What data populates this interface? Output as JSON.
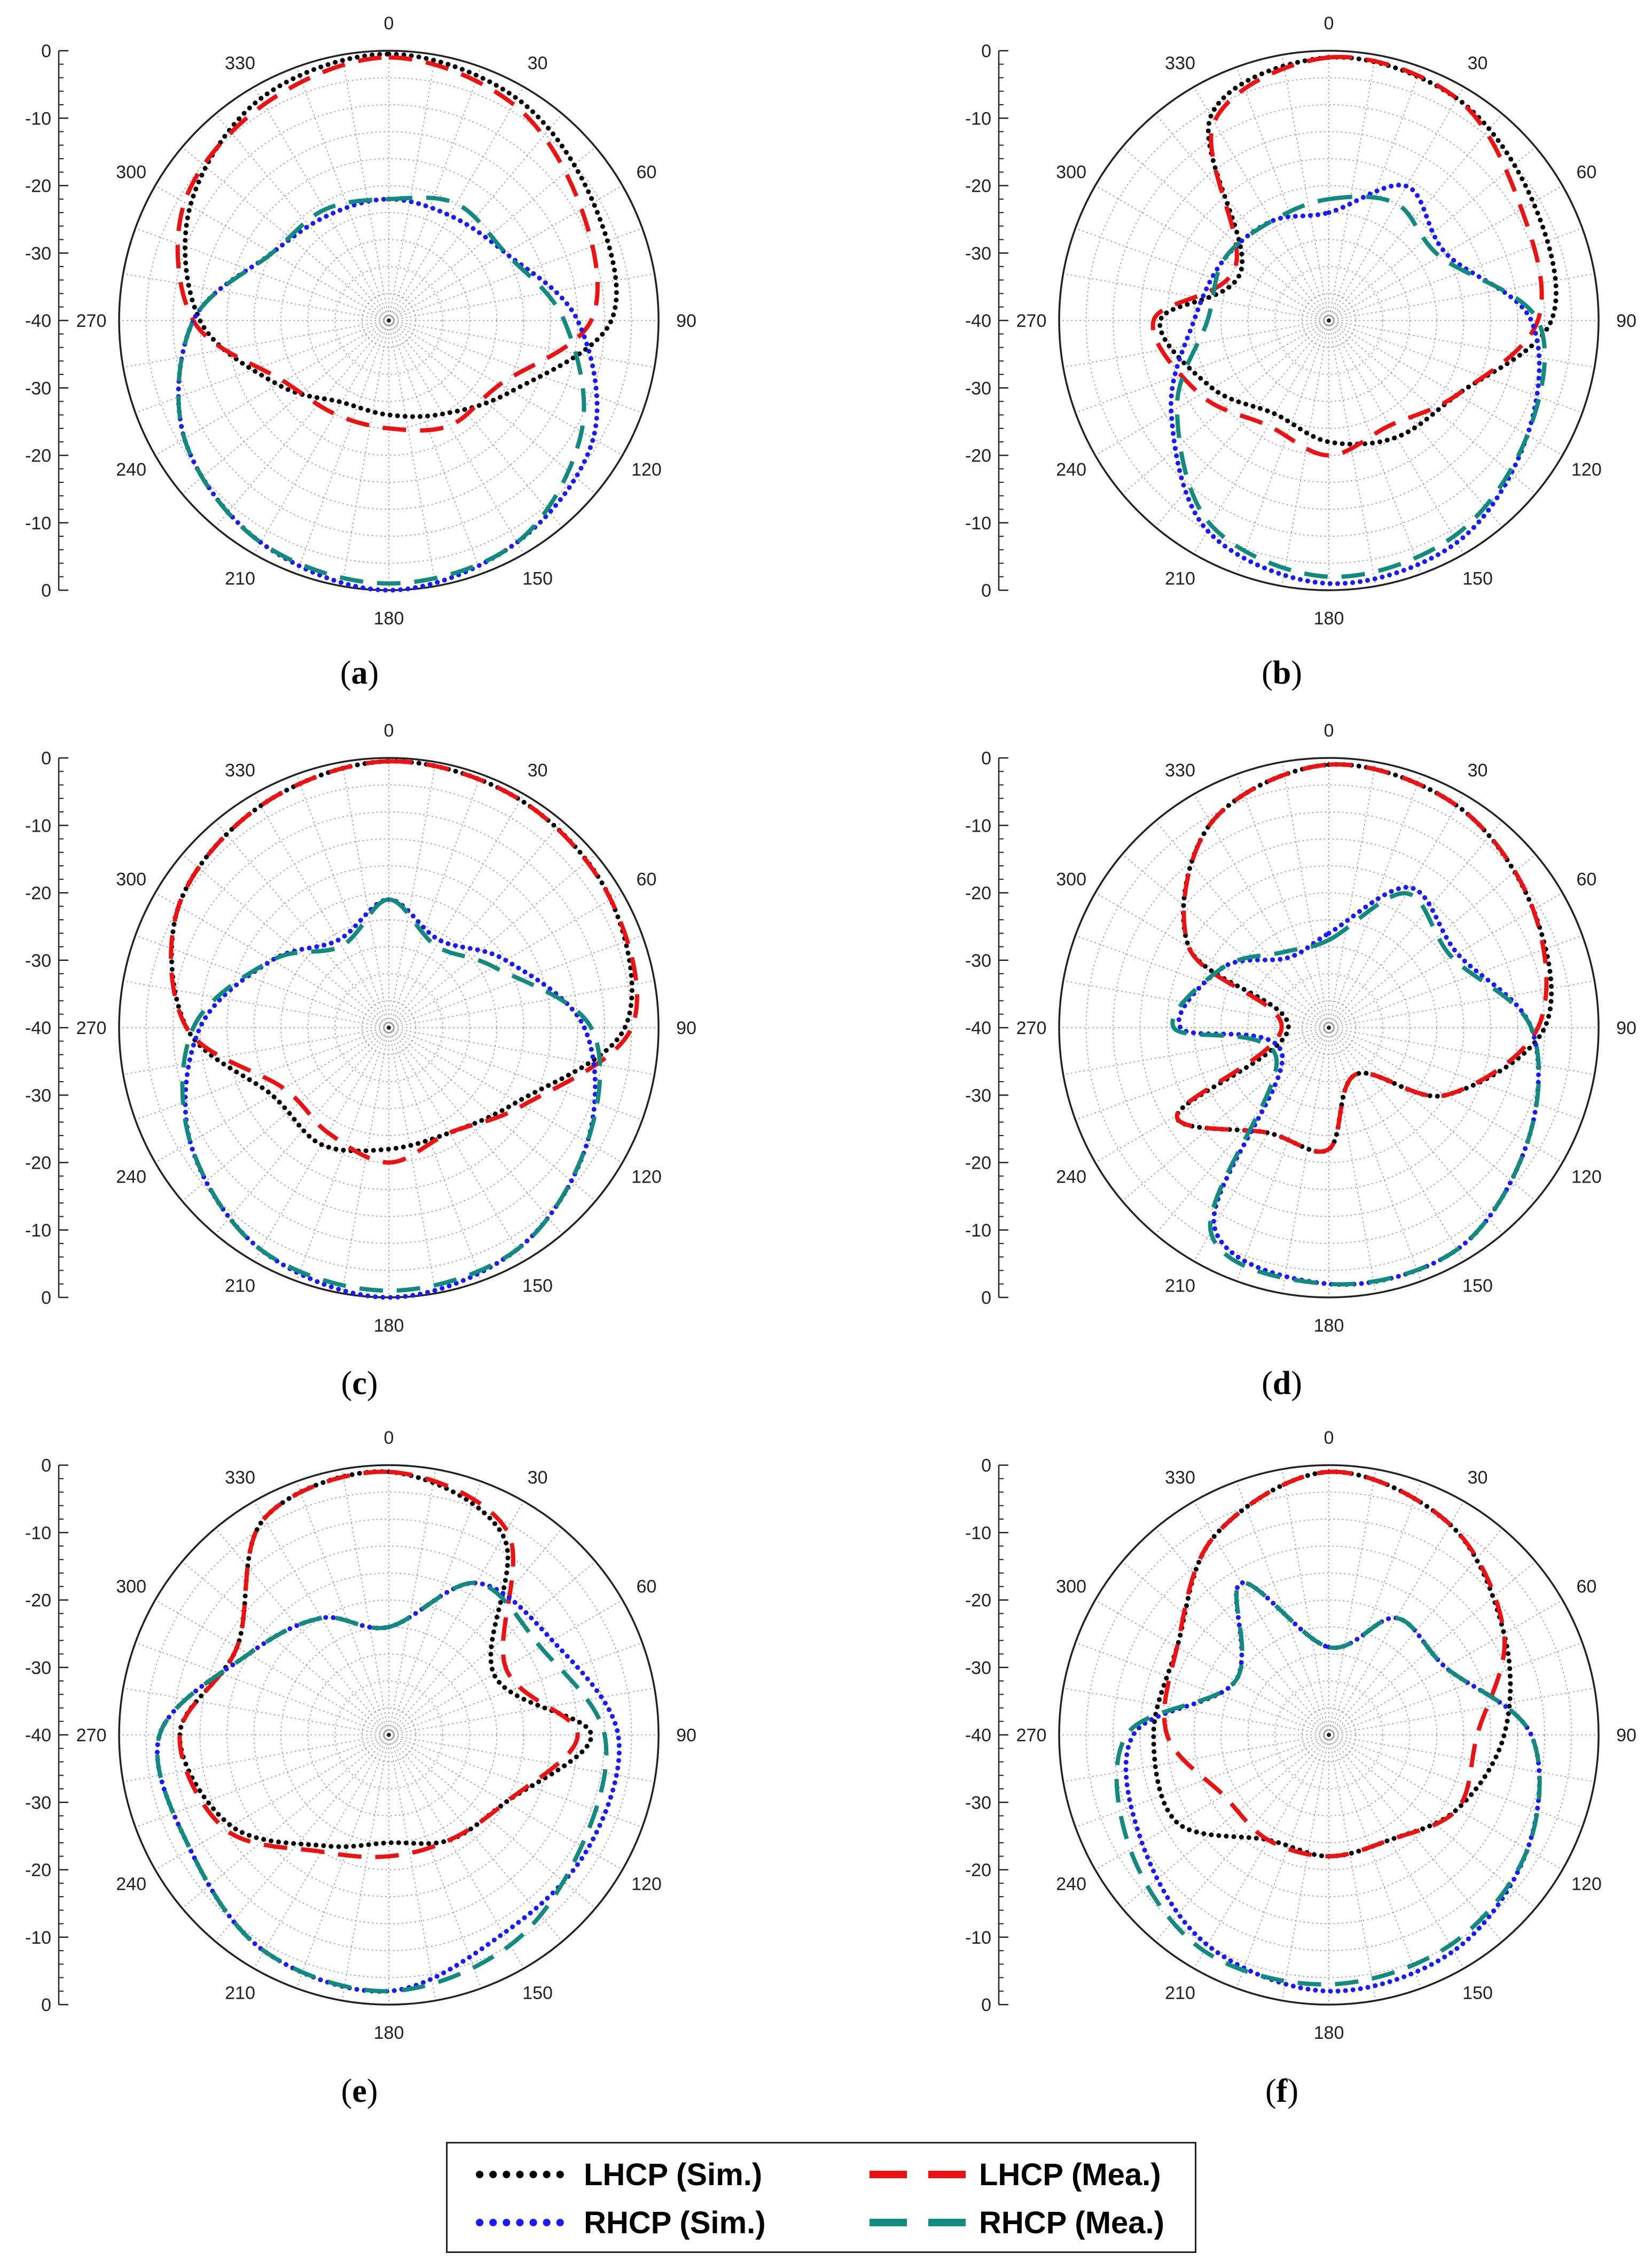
{
  "figure": {
    "legend": [
      {
        "label": "LHCP (Sim.)",
        "color": "#000000",
        "style": "dotted"
      },
      {
        "label": "LHCP (Mea.)",
        "color": "#ee1111",
        "style": "dashed"
      },
      {
        "label": "RHCP (Sim.)",
        "color": "#1a1aff",
        "style": "dotted"
      },
      {
        "label": "RHCP (Mea.)",
        "color": "#128a80",
        "style": "dashed"
      }
    ]
  },
  "chart_data": [
    {
      "type": "polar-line",
      "id": "a",
      "caption": "a",
      "angle_ticks": [
        "0",
        "30",
        "60",
        "90",
        "120",
        "150",
        "180",
        "210",
        "240",
        "270",
        "300",
        "330"
      ],
      "radial_ticks": [
        "0",
        "-10",
        "-20",
        "-30",
        "-40",
        "-30",
        "-20",
        "-10",
        "0"
      ],
      "rlim": [
        -40,
        0
      ],
      "theta_zero": "top",
      "theta_direction": "clockwise",
      "series": [
        {
          "name": "LHCP (Sim.)",
          "theta": [
            0,
            30,
            60,
            90,
            120,
            150,
            180,
            210,
            240,
            270,
            300,
            330
          ],
          "r": [
            -0.5,
            -2,
            -5,
            -7,
            -19,
            -24,
            -26,
            -26,
            -21,
            -12,
            -6,
            -2
          ]
        },
        {
          "name": "LHCP (Mea.)",
          "theta": [
            0,
            30,
            60,
            90,
            120,
            150,
            180,
            210,
            240,
            270,
            300,
            330
          ],
          "r": [
            -1,
            -3,
            -7,
            -10,
            -21,
            -22,
            -24,
            -24,
            -22,
            -11,
            -5,
            -3
          ]
        },
        {
          "name": "RHCP (Sim.)",
          "theta": [
            0,
            30,
            60,
            90,
            120,
            150,
            180,
            210,
            240,
            270,
            300,
            330
          ],
          "r": [
            -22,
            -22,
            -20,
            -12,
            -5,
            -2,
            0,
            -2,
            -5,
            -11,
            -20,
            -22
          ]
        },
        {
          "name": "RHCP (Mea.)",
          "theta": [
            0,
            30,
            60,
            90,
            120,
            150,
            180,
            210,
            240,
            270,
            300,
            330
          ],
          "r": [
            -22,
            -20,
            -20,
            -14,
            -7,
            -2,
            -1,
            -2,
            -5,
            -11,
            -20,
            -21
          ]
        }
      ]
    },
    {
      "type": "polar-line",
      "id": "b",
      "caption": "b",
      "angle_ticks": [
        "0",
        "30",
        "60",
        "90",
        "120",
        "150",
        "180",
        "210",
        "240",
        "270",
        "300",
        "330"
      ],
      "radial_ticks": [
        "0",
        "-10",
        "-20",
        "-30",
        "-40",
        "-30",
        "-20",
        "-10",
        "0"
      ],
      "rlim": [
        -40,
        0
      ],
      "theta_zero": "top",
      "theta_direction": "clockwise",
      "series": [
        {
          "name": "LHCP (Sim.)",
          "theta": [
            0,
            30,
            60,
            90,
            120,
            150,
            180,
            210,
            240,
            270,
            300,
            330
          ],
          "r": [
            -1,
            -2,
            -5,
            -7,
            -18,
            -20,
            -22,
            -24,
            -20,
            -15,
            -25,
            -5
          ]
        },
        {
          "name": "LHCP (Mea.)",
          "theta": [
            0,
            30,
            60,
            90,
            120,
            150,
            180,
            210,
            240,
            270,
            300,
            330
          ],
          "r": [
            -1,
            -2,
            -7,
            -9,
            -18,
            -22,
            -20,
            -22,
            -18,
            -14,
            -24,
            -6
          ]
        },
        {
          "name": "RHCP (Sim.)",
          "theta": [
            0,
            30,
            60,
            90,
            120,
            150,
            180,
            210,
            240,
            270,
            300,
            330
          ],
          "r": [
            -24,
            -17,
            -20,
            -10,
            -6,
            -2,
            -1,
            -4,
            -13,
            -20,
            -22,
            -23
          ]
        },
        {
          "name": "RHCP (Mea.)",
          "theta": [
            0,
            30,
            60,
            90,
            120,
            150,
            180,
            210,
            240,
            270,
            300,
            330
          ],
          "r": [
            -22,
            -20,
            -21,
            -9,
            -6,
            -3,
            -2,
            -5,
            -14,
            -22,
            -22,
            -23
          ]
        }
      ]
    },
    {
      "type": "polar-line",
      "id": "c",
      "caption": "c",
      "angle_ticks": [
        "0",
        "30",
        "60",
        "90",
        "120",
        "150",
        "180",
        "210",
        "240",
        "270",
        "300",
        "330"
      ],
      "radial_ticks": [
        "0",
        "-10",
        "-20",
        "-30",
        "-40",
        "-30",
        "-20",
        "-10",
        "0"
      ],
      "rlim": [
        -40,
        0
      ],
      "theta_zero": "top",
      "theta_direction": "clockwise",
      "series": [
        {
          "name": "LHCP (Sim.)",
          "theta": [
            0,
            30,
            60,
            90,
            120,
            150,
            180,
            210,
            240,
            270,
            300,
            330
          ],
          "r": [
            -0.5,
            -1,
            -2,
            -5,
            -18,
            -22,
            -22,
            -20,
            -20,
            -10,
            -4,
            -2
          ]
        },
        {
          "name": "LHCP (Mea.)",
          "theta": [
            0,
            30,
            60,
            90,
            120,
            150,
            180,
            210,
            240,
            270,
            300,
            330
          ],
          "r": [
            -0.5,
            -1,
            -2,
            -4,
            -17,
            -22,
            -20,
            -22,
            -22,
            -10,
            -4,
            -2
          ]
        },
        {
          "name": "RHCP (Sim.)",
          "theta": [
            0,
            30,
            60,
            90,
            120,
            150,
            180,
            210,
            240,
            270,
            300,
            330
          ],
          "r": [
            -21,
            -25,
            -20,
            -11,
            -6,
            -2,
            0,
            -2,
            -6,
            -12,
            -20,
            -25
          ]
        },
        {
          "name": "RHCP (Mea.)",
          "theta": [
            0,
            30,
            60,
            90,
            120,
            150,
            180,
            210,
            240,
            270,
            300,
            330
          ],
          "r": [
            -21,
            -26,
            -22,
            -10,
            -6,
            -2,
            -1,
            -2,
            -6,
            -11,
            -20,
            -26
          ]
        }
      ]
    },
    {
      "type": "polar-line",
      "id": "d",
      "caption": "d",
      "angle_ticks": [
        "0",
        "30",
        "60",
        "90",
        "120",
        "150",
        "180",
        "210",
        "240",
        "270",
        "300",
        "330"
      ],
      "radial_ticks": [
        "0",
        "-10",
        "-20",
        "-30",
        "-40",
        "-30",
        "-20",
        "-10",
        "0"
      ],
      "rlim": [
        -40,
        0
      ],
      "theta_zero": "top",
      "theta_direction": "clockwise",
      "series": [
        {
          "name": "LHCP (Sim.)",
          "theta": [
            0,
            30,
            60,
            90,
            120,
            150,
            180,
            210,
            240,
            270,
            300,
            330
          ],
          "r": [
            -1,
            -2,
            -5,
            -8,
            -20,
            -32,
            -22,
            -22,
            -14,
            -34,
            -16,
            -5
          ]
        },
        {
          "name": "LHCP (Mea.)",
          "theta": [
            0,
            30,
            60,
            90,
            120,
            150,
            180,
            210,
            240,
            270,
            300,
            330
          ],
          "r": [
            -1,
            -2,
            -5,
            -9,
            -20,
            -32,
            -22,
            -22,
            -14,
            -33,
            -16,
            -5
          ]
        },
        {
          "name": "RHCP (Sim.)",
          "theta": [
            0,
            30,
            60,
            90,
            120,
            150,
            180,
            210,
            240,
            270,
            300,
            330
          ],
          "r": [
            -26,
            -16,
            -18,
            -10,
            -6,
            -2,
            -2,
            -6,
            -32,
            -18,
            -22,
            -28
          ]
        },
        {
          "name": "RHCP (Mea.)",
          "theta": [
            0,
            30,
            60,
            90,
            120,
            150,
            180,
            210,
            240,
            270,
            300,
            330
          ],
          "r": [
            -27,
            -17,
            -19,
            -10,
            -6,
            -2,
            -2,
            -5,
            -31,
            -17,
            -22,
            -27
          ]
        }
      ]
    },
    {
      "type": "polar-line",
      "id": "e",
      "caption": "e",
      "angle_ticks": [
        "0",
        "30",
        "60",
        "90",
        "120",
        "150",
        "180",
        "210",
        "240",
        "270",
        "300",
        "330"
      ],
      "radial_ticks": [
        "0",
        "-10",
        "-20",
        "-30",
        "-40",
        "-30",
        "-20",
        "-10",
        "0"
      ],
      "rlim": [
        -40,
        0
      ],
      "theta_zero": "top",
      "theta_direction": "clockwise",
      "series": [
        {
          "name": "LHCP (Sim.)",
          "theta": [
            0,
            30,
            60,
            90,
            120,
            150,
            180,
            210,
            240,
            270,
            300,
            330
          ],
          "r": [
            -1,
            -6,
            -22,
            -10,
            -20,
            -22,
            -24,
            -21,
            -13,
            -9,
            -14,
            -3
          ]
        },
        {
          "name": "LHCP (Mea.)",
          "theta": [
            0,
            30,
            60,
            90,
            120,
            150,
            180,
            210,
            240,
            270,
            300,
            330
          ],
          "r": [
            -1,
            -5,
            -20,
            -12,
            -20,
            -22,
            -22,
            -20,
            -12,
            -9,
            -14,
            -3
          ]
        },
        {
          "name": "RHCP (Sim.)",
          "theta": [
            0,
            30,
            60,
            90,
            120,
            150,
            180,
            210,
            240,
            270,
            300,
            330
          ],
          "r": [
            -24,
            -14,
            -12,
            -6,
            -6,
            -6,
            -2,
            -3,
            -6,
            -6,
            -16,
            -20
          ]
        },
        {
          "name": "RHCP (Mea.)",
          "theta": [
            0,
            30,
            60,
            90,
            120,
            150,
            180,
            210,
            240,
            270,
            300,
            330
          ],
          "r": [
            -24,
            -14,
            -14,
            -8,
            -7,
            -4,
            -2,
            -3,
            -6,
            -6,
            -16,
            -20
          ]
        }
      ]
    },
    {
      "type": "polar-line",
      "id": "f",
      "caption": "f",
      "angle_ticks": [
        "0",
        "30",
        "60",
        "90",
        "120",
        "150",
        "180",
        "210",
        "240",
        "270",
        "300",
        "330"
      ],
      "radial_ticks": [
        "0",
        "-10",
        "-20",
        "-30",
        "-40",
        "-30",
        "-20",
        "-10",
        "0"
      ],
      "rlim": [
        -40,
        0
      ],
      "theta_zero": "top",
      "theta_direction": "clockwise",
      "series": [
        {
          "name": "LHCP (Sim.)",
          "theta": [
            0,
            30,
            60,
            90,
            120,
            150,
            180,
            210,
            240,
            270,
            300,
            330
          ],
          "r": [
            -1,
            -4,
            -10,
            -14,
            -18,
            -22,
            -22,
            -22,
            -14,
            -14,
            -14,
            -6
          ]
        },
        {
          "name": "LHCP (Mea.)",
          "theta": [
            0,
            30,
            60,
            90,
            120,
            150,
            180,
            210,
            240,
            270,
            300,
            330
          ],
          "r": [
            -1,
            -4,
            -10,
            -18,
            -18,
            -22,
            -22,
            -22,
            -22,
            -16,
            -14,
            -6
          ]
        },
        {
          "name": "RHCP (Sim.)",
          "theta": [
            0,
            30,
            60,
            90,
            120,
            150,
            180,
            210,
            240,
            270,
            300,
            330
          ],
          "r": [
            -27,
            -20,
            -20,
            -10,
            -6,
            -3,
            -2,
            -4,
            -8,
            -11,
            -24,
            -14
          ]
        },
        {
          "name": "RHCP (Mea.)",
          "theta": [
            0,
            30,
            60,
            90,
            120,
            150,
            180,
            210,
            240,
            270,
            300,
            330
          ],
          "r": [
            -27,
            -20,
            -20,
            -10,
            -6,
            -4,
            -3,
            -3,
            -6,
            -10,
            -24,
            -14
          ]
        }
      ]
    }
  ]
}
